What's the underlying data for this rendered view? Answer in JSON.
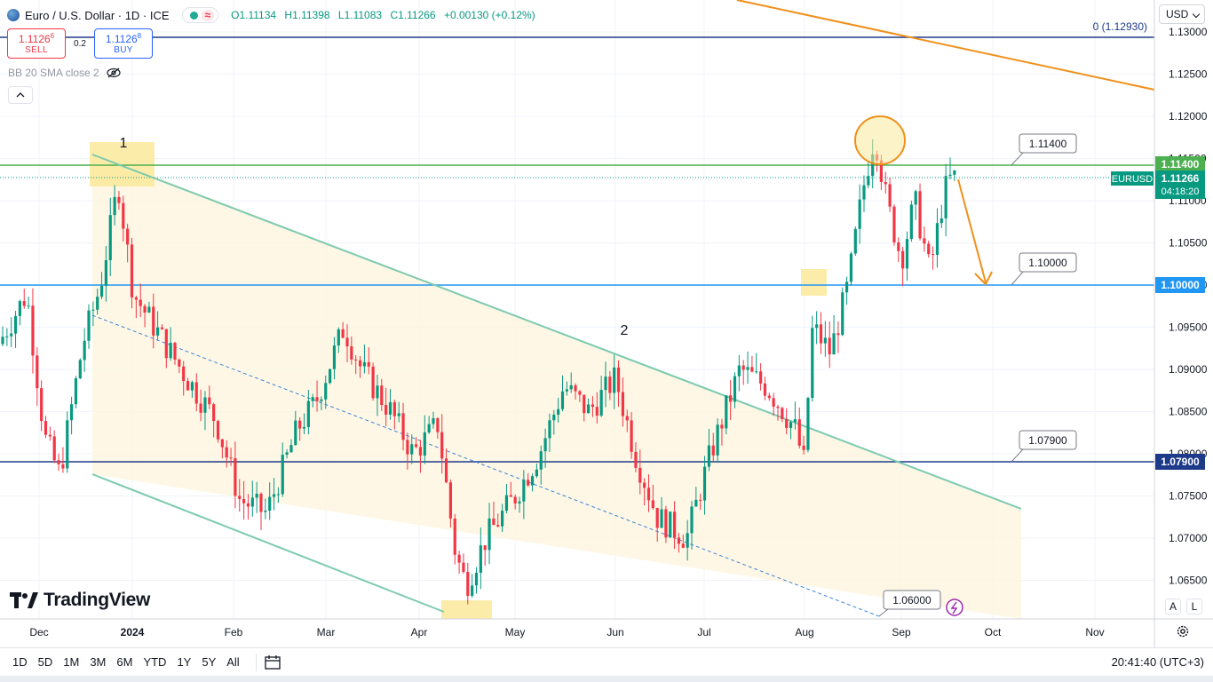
{
  "header": {
    "symbol_title": "Euro / U.S. Dollar · 1D · ICE",
    "open": "O1.11134",
    "high": "H1.11398",
    "low": "L1.11083",
    "close": "C1.11266",
    "change": "+0.00130 (+0.12%)",
    "currency": "USD"
  },
  "trade": {
    "sell_price": "1.1126",
    "sell_price_sup": "6",
    "sell_label": "SELL",
    "spread": "0.2",
    "buy_price": "1.1126",
    "buy_price_sup": "8",
    "buy_label": "BUY"
  },
  "indicator": {
    "label": "BB 20 SMA close 2"
  },
  "fib_label": "0 (1.12930)",
  "price_axis": {
    "ticks": [
      "1.13000",
      "1.12500",
      "1.12000",
      "1.11500",
      "1.11000",
      "1.10500",
      "1.10000",
      "1.09500",
      "1.09000",
      "1.08500",
      "1.08000",
      "1.07500",
      "1.07000",
      "1.06500"
    ],
    "tick_values": [
      1.13,
      1.125,
      1.12,
      1.115,
      1.11,
      1.105,
      1.1,
      1.095,
      1.09,
      1.085,
      1.08,
      1.075,
      1.07,
      1.065
    ],
    "badges": [
      {
        "text": "1.11400",
        "value": 1.114,
        "color": "#4caf50"
      },
      {
        "text": "1.10000",
        "value": 1.1,
        "color": "#2196f3"
      },
      {
        "text": "1.07900",
        "value": 1.079,
        "color": "#1e3a8a"
      }
    ],
    "last_price": "1.11266",
    "last_value": 1.11266,
    "countdown": "04:18:20",
    "symbol_tag": "EURUSD"
  },
  "time_axis": {
    "labels": [
      "Dec",
      "2024",
      "Feb",
      "Mar",
      "Apr",
      "May",
      "Jun",
      "Jul",
      "Aug",
      "Sep",
      "Oct",
      "Nov"
    ]
  },
  "chart_data": {
    "type": "candlestick",
    "title": "Euro / U.S. Dollar · 1D · ICE",
    "ylim": [
      1.0615,
      1.1335
    ],
    "levels": [
      {
        "label": "1.11400",
        "value": 1.114
      },
      {
        "label": "1.10000",
        "value": 1.1
      },
      {
        "label": "1.07900",
        "value": 1.079
      },
      {
        "label": "1.06000",
        "value": 1.06
      },
      {
        "label": "0 (1.12930)",
        "value": 1.1293
      }
    ],
    "annotations": [
      "1",
      "2"
    ]
  },
  "callouts": [
    "1.11400",
    "1.10000",
    "1.07900",
    "1.06000"
  ],
  "brand": "TradingView",
  "scale_buttons": [
    "A",
    "L"
  ],
  "bottom": {
    "timeframes": [
      "1D",
      "5D",
      "1M",
      "3M",
      "6M",
      "YTD",
      "1Y",
      "5Y",
      "All"
    ],
    "clock": "20:41:40 (UTC+3)"
  },
  "colors": {
    "up": "#089981",
    "down": "#f23645",
    "green_level": "#4caf50",
    "blue_level": "#2196f3",
    "navy_level": "#1e3a8a",
    "orange": "#f0901a",
    "channel": "#7ccbb0"
  }
}
